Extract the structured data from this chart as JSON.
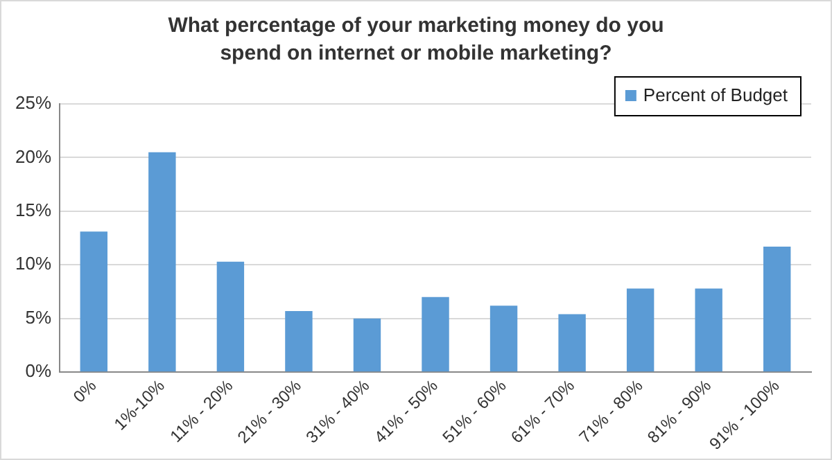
{
  "chart_data": {
    "type": "bar",
    "title": "What percentage of your marketing money do you spend on internet or mobile marketing?",
    "categories": [
      "0%",
      "1%-10%",
      "11% - 20%",
      "21% - 30%",
      "31% - 40%",
      "41% - 50%",
      "51% - 60%",
      "61% - 70%",
      "71% - 80%",
      "81% - 90%",
      "91% - 100%"
    ],
    "series": [
      {
        "name": "Percent of Budget",
        "color": "#5b9bd5",
        "values": [
          13.1,
          20.5,
          10.3,
          5.7,
          5.0,
          7.0,
          6.2,
          5.4,
          7.8,
          7.8,
          11.7
        ]
      }
    ],
    "ylim": [
      0,
      25
    ],
    "yticks": [
      {
        "value": 0,
        "label": "0%"
      },
      {
        "value": 5,
        "label": "5%"
      },
      {
        "value": 10,
        "label": "10%"
      },
      {
        "value": 15,
        "label": "15%"
      },
      {
        "value": 20,
        "label": "20%"
      },
      {
        "value": 25,
        "label": "25%"
      }
    ],
    "grid": "y",
    "legend": "top right"
  }
}
